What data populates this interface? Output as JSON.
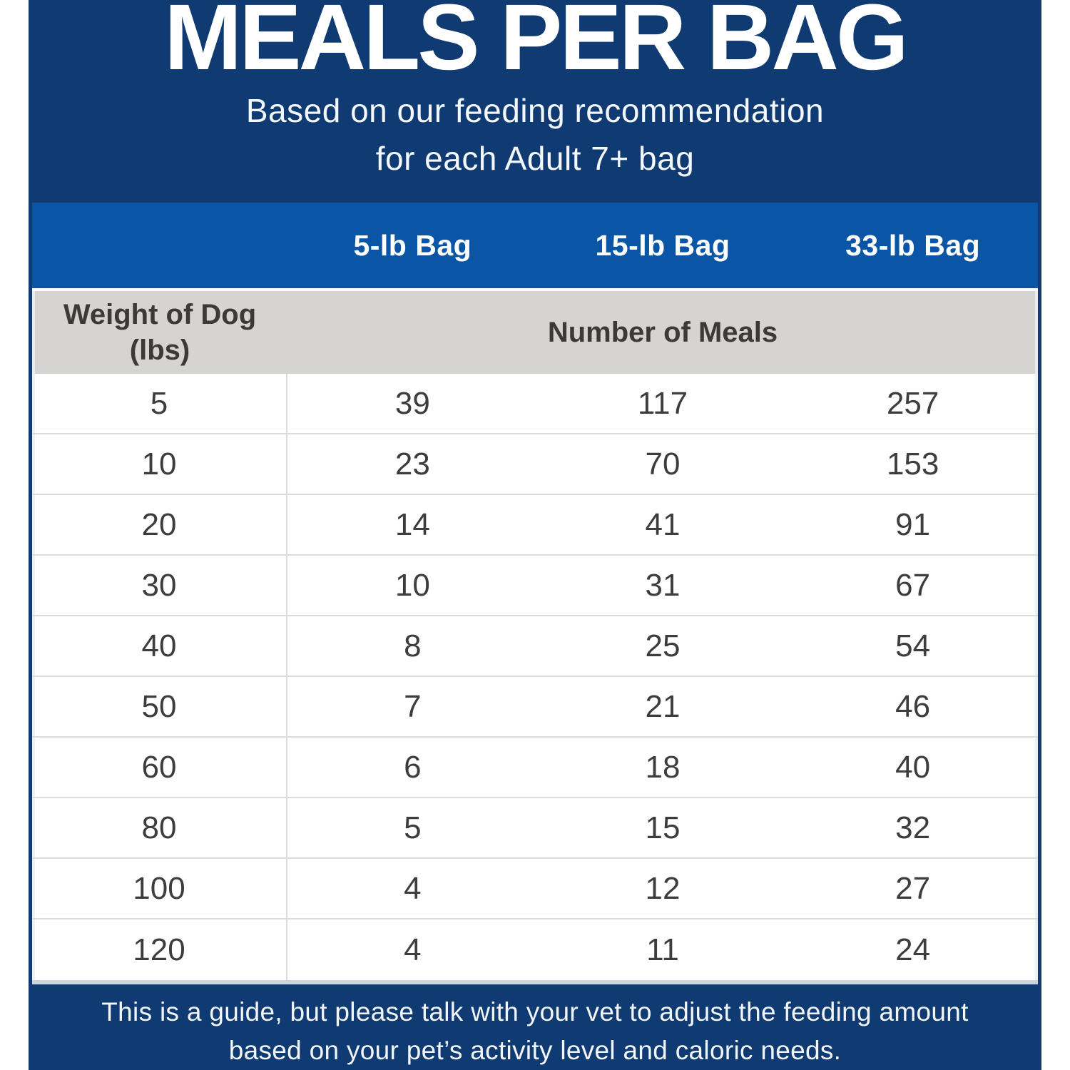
{
  "header": {
    "title": "MEALS PER BAG",
    "subtitle_line1": "Based on our feeding recommendation",
    "subtitle_line2": "for each Adult 7+ bag"
  },
  "table": {
    "bag_headers": [
      "5-lb Bag",
      "15-lb Bag",
      "33-lb Bag"
    ],
    "weight_header_line1": "Weight of Dog",
    "weight_header_line2": "(lbs)",
    "meals_header": "Number of Meals",
    "rows": [
      {
        "weight": "5",
        "bag5": "39",
        "bag15": "117",
        "bag33": "257"
      },
      {
        "weight": "10",
        "bag5": "23",
        "bag15": "70",
        "bag33": "153"
      },
      {
        "weight": "20",
        "bag5": "14",
        "bag15": "41",
        "bag33": "91"
      },
      {
        "weight": "30",
        "bag5": "10",
        "bag15": "31",
        "bag33": "67"
      },
      {
        "weight": "40",
        "bag5": "8",
        "bag15": "25",
        "bag33": "54"
      },
      {
        "weight": "50",
        "bag5": "7",
        "bag15": "21",
        "bag33": "46"
      },
      {
        "weight": "60",
        "bag5": "6",
        "bag15": "18",
        "bag33": "40"
      },
      {
        "weight": "80",
        "bag5": "5",
        "bag15": "15",
        "bag33": "32"
      },
      {
        "weight": "100",
        "bag5": "4",
        "bag15": "12",
        "bag33": "27"
      },
      {
        "weight": "120",
        "bag5": "4",
        "bag15": "11",
        "bag33": "24"
      }
    ]
  },
  "footer": {
    "note_line1": "This is a guide, but please talk with your vet to adjust the feeding amount",
    "note_line2": "based on your pet’s activity level and caloric needs."
  },
  "colors": {
    "navy": "#0f3a72",
    "blue": "#0a55a5",
    "gray-band": "#d5d4d2",
    "text-dark": "#3b3a39",
    "row-line": "#dcdcdc",
    "bottom-line": "#ccd4de"
  }
}
